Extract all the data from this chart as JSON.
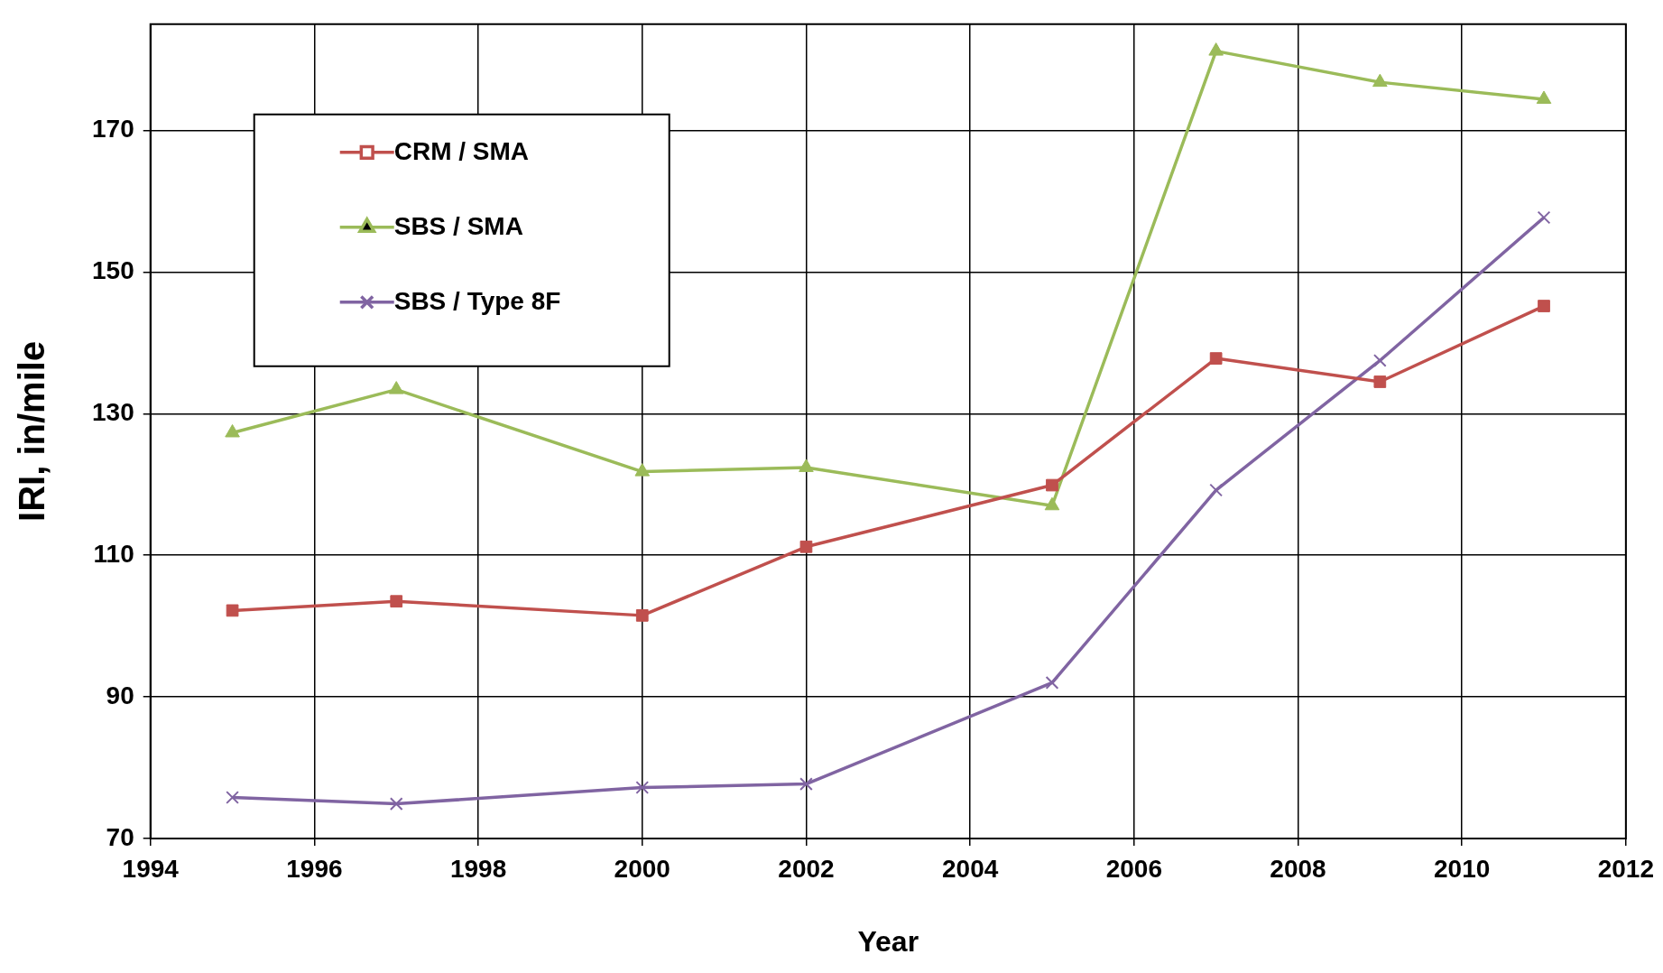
{
  "chart_data": {
    "type": "line",
    "xlabel": "Year",
    "ylabel": "IRI, in/mile",
    "x": [
      1995,
      1997,
      2000,
      2002,
      2005,
      2007,
      2009,
      2011
    ],
    "series": [
      {
        "name": "CRM / SMA",
        "color": "#c0504d",
        "marker": "square",
        "values": [
          102.2,
          103.5,
          101.5,
          111.2,
          119.9,
          137.8,
          134.5,
          145.2
        ]
      },
      {
        "name": "SBS / SMA",
        "color": "#9bbb59",
        "marker": "triangle",
        "values": [
          127.3,
          133.4,
          121.8,
          122.4,
          117,
          181.2,
          176.8,
          174.4
        ]
      },
      {
        "name": "SBS / Type 8F",
        "color": "#8064a2",
        "marker": "cross",
        "values": [
          75.8,
          74.9,
          77.2,
          77.7,
          92,
          119.2,
          137.5,
          157.7
        ]
      }
    ],
    "xlim": [
      1994,
      2012
    ],
    "xticks": [
      1994,
      1996,
      1998,
      2000,
      2002,
      2004,
      2006,
      2008,
      2010,
      2012
    ],
    "ylim": [
      70,
      185
    ],
    "yticks": [
      70,
      90,
      110,
      130,
      150,
      170
    ],
    "grid": true,
    "legend": "top left",
    "line_style": "solid"
  }
}
